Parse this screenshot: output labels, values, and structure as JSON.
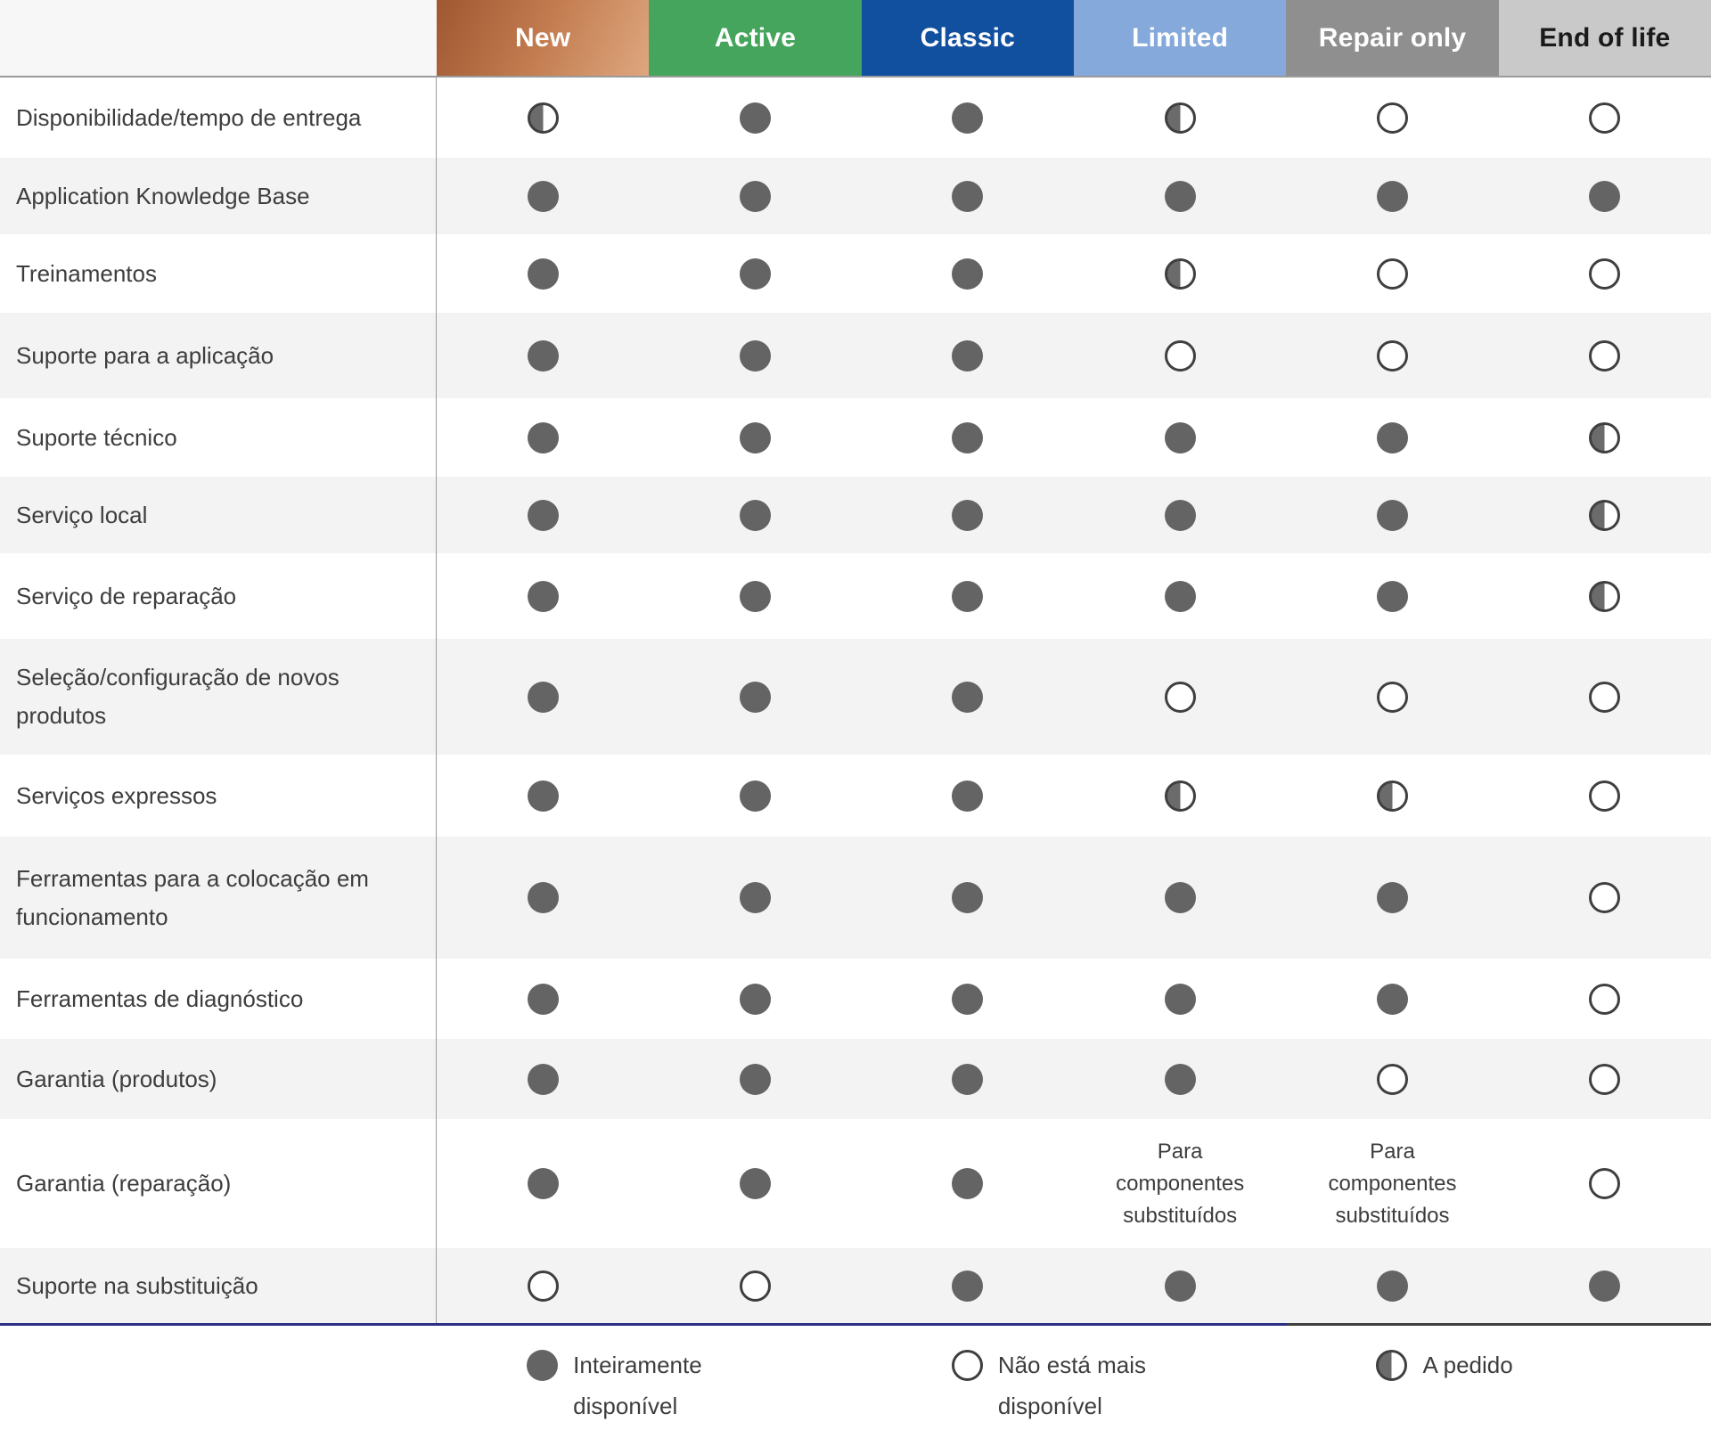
{
  "table": {
    "columns": [
      {
        "id": "new",
        "label": "New",
        "bg_gradient": [
          "#9e5730",
          "#c37c50",
          "#dea77f"
        ],
        "text_color": "#ffffff"
      },
      {
        "id": "active",
        "label": "Active",
        "bg": "#45a55c",
        "text_color": "#ffffff"
      },
      {
        "id": "classic",
        "label": "Classic",
        "bg": "#114f9f",
        "text_color": "#ffffff"
      },
      {
        "id": "limited",
        "label": "Limited",
        "bg": "#84a9da",
        "text_color": "#ffffff"
      },
      {
        "id": "repair-only",
        "label": "Repair only",
        "bg": "#8f8f8f",
        "text_color": "#ffffff"
      },
      {
        "id": "end-of-life",
        "label": "End of life",
        "bg": "#c9c9c9",
        "text_color": "#1a1a1a"
      }
    ],
    "rows": [
      {
        "label": "Disponibilidade/tempo de entrega",
        "cells": [
          "half",
          "full",
          "full",
          "half",
          "empty",
          "empty"
        ]
      },
      {
        "label": "Application Knowledge Base",
        "cells": [
          "full",
          "full",
          "full",
          "full",
          "full",
          "full"
        ]
      },
      {
        "label": "Treinamentos",
        "cells": [
          "full",
          "full",
          "full",
          "half",
          "empty",
          "empty"
        ]
      },
      {
        "label": "Suporte para a aplicação",
        "cells": [
          "full",
          "full",
          "full",
          "empty",
          "empty",
          "empty"
        ]
      },
      {
        "label": "Suporte técnico",
        "cells": [
          "full",
          "full",
          "full",
          "full",
          "full",
          "half"
        ]
      },
      {
        "label": "Serviço local",
        "cells": [
          "full",
          "full",
          "full",
          "full",
          "full",
          "half"
        ]
      },
      {
        "label": "Serviço de reparação",
        "cells": [
          "full",
          "full",
          "full",
          "full",
          "full",
          "half"
        ]
      },
      {
        "label": "Seleção/configuração de novos produtos",
        "cells": [
          "full",
          "full",
          "full",
          "empty",
          "empty",
          "empty"
        ]
      },
      {
        "label": "Serviços expressos",
        "cells": [
          "full",
          "full",
          "full",
          "half",
          "half",
          "empty"
        ]
      },
      {
        "label": "Ferramentas para a colocação em funcionamento",
        "cells": [
          "full",
          "full",
          "full",
          "full",
          "full",
          "empty"
        ]
      },
      {
        "label": "Ferramentas de diagnóstico",
        "cells": [
          "full",
          "full",
          "full",
          "full",
          "full",
          "empty"
        ]
      },
      {
        "label": "Garantia (produtos)",
        "cells": [
          "full",
          "full",
          "full",
          "full",
          "empty",
          "empty"
        ]
      },
      {
        "label": "Garantia (reparação)",
        "cells": [
          "full",
          "full",
          "full",
          "text",
          "text",
          "empty"
        ],
        "cell_text": "Para componentes substituídos"
      },
      {
        "label": "Suporte na substituição",
        "cells": [
          "empty",
          "empty",
          "full",
          "full",
          "full",
          "full"
        ]
      }
    ]
  },
  "legend": {
    "items": [
      {
        "icon": "full-circle",
        "lines": [
          "Inteiramente",
          "disponível"
        ]
      },
      {
        "icon": "empty-circle",
        "lines": [
          "Não está mais",
          "disponível"
        ]
      },
      {
        "icon": "half-circle",
        "lines": [
          "A pedido"
        ]
      }
    ]
  },
  "colors": {
    "dot_fill": "#646464",
    "dot_outline": "#3f3f3f",
    "row_alt_bg": "#f3f3f3",
    "divider": "#9b9b9b",
    "footer_line_blue": "#2b2f85",
    "footer_line_dark": "#3f3f3f",
    "header_new_gradient": [
      "#9e5730",
      "#c37c50",
      "#dea77f"
    ],
    "header_active": "#45a55c",
    "header_classic": "#114f9f",
    "header_limited": "#84a9da",
    "header_repair_only": "#8f8f8f",
    "header_end_of_life": "#c9c9c9"
  }
}
